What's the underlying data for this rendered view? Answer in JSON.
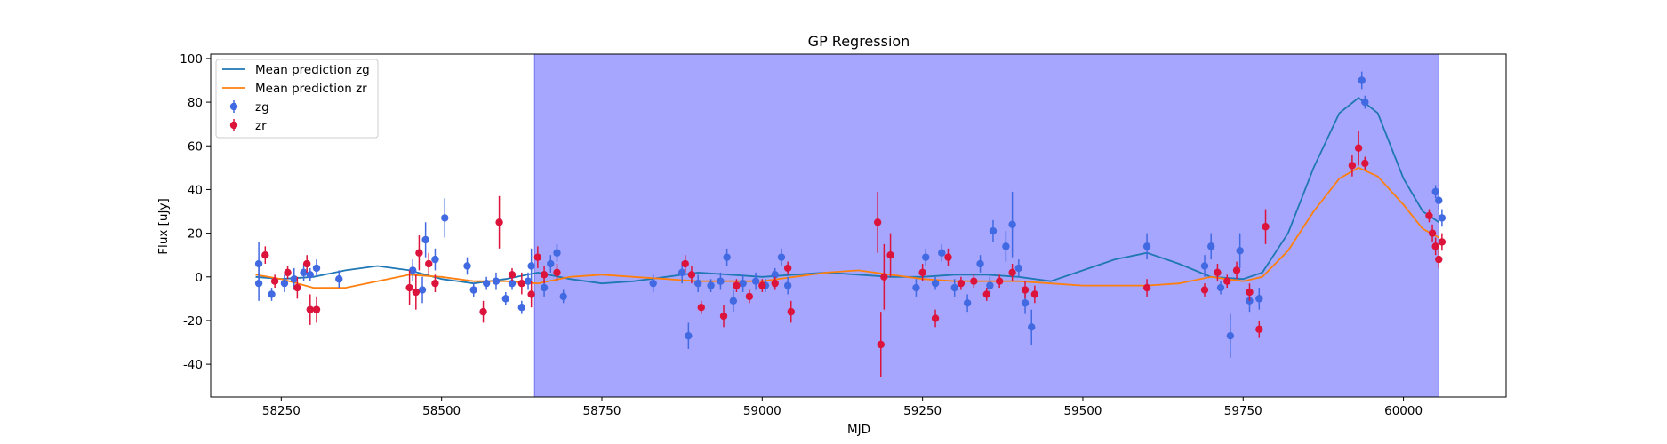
{
  "chart_data": {
    "type": "scatter",
    "title": "GP Regression",
    "xlabel": "MJD",
    "ylabel": "Flux [uJy]",
    "xlim": [
      58140,
      60160
    ],
    "ylim": [
      -55,
      102
    ],
    "xticks": [
      58250,
      58500,
      58750,
      59000,
      59250,
      59500,
      59750,
      60000
    ],
    "yticks": [
      -40,
      -20,
      0,
      20,
      40,
      60,
      80,
      100
    ],
    "grid": false,
    "legend_position": "top-left",
    "shaded_region": {
      "x0": 58645,
      "x1": 60055,
      "color": "#a6a6ff"
    },
    "lines": [
      {
        "name": "Mean prediction zg",
        "color": "#1f77b4",
        "x": [
          58210,
          58250,
          58300,
          58350,
          58400,
          58450,
          58500,
          58550,
          58600,
          58650,
          58700,
          58750,
          58800,
          58850,
          58900,
          58950,
          59000,
          59050,
          59100,
          59150,
          59200,
          59250,
          59300,
          59350,
          59400,
          59450,
          59500,
          59550,
          59600,
          59650,
          59700,
          59750,
          59780,
          59820,
          59860,
          59900,
          59930,
          59960,
          60000,
          60030,
          60055
        ],
        "y": [
          0,
          -1,
          0,
          3,
          5,
          3,
          -1,
          -3,
          -1,
          2,
          -1,
          -3,
          -2,
          0,
          2,
          1,
          0,
          1,
          2,
          1,
          0,
          0,
          1,
          1,
          0,
          -2,
          3,
          8,
          11,
          6,
          0,
          -1,
          2,
          20,
          50,
          75,
          82,
          75,
          45,
          30,
          25
        ]
      },
      {
        "name": "Mean prediction zr",
        "color": "#ff7f0e",
        "x": [
          58210,
          58250,
          58300,
          58350,
          58400,
          58450,
          58500,
          58550,
          58600,
          58650,
          58700,
          58750,
          58800,
          58850,
          58900,
          58950,
          59000,
          59050,
          59100,
          59150,
          59200,
          59250,
          59300,
          59350,
          59400,
          59450,
          59500,
          59550,
          59600,
          59650,
          59700,
          59750,
          59780,
          59820,
          59860,
          59900,
          59930,
          59960,
          60000,
          60030,
          60055
        ],
        "y": [
          1,
          -1,
          -5,
          -5,
          -2,
          1,
          0,
          -2,
          -2,
          -3,
          0,
          1,
          0,
          -1,
          -2,
          -2,
          -2,
          0,
          2,
          3,
          1,
          -1,
          -2,
          -2,
          -2,
          -3,
          -4,
          -4,
          -4,
          -3,
          0,
          -2,
          0,
          12,
          30,
          45,
          50,
          46,
          33,
          22,
          18
        ]
      }
    ],
    "series": [
      {
        "name": "zg",
        "color": "#4169e1",
        "points": [
          [
            58215,
            6,
            10
          ],
          [
            58215,
            -3,
            8
          ],
          [
            58235,
            -8,
            3
          ],
          [
            58255,
            -3,
            4
          ],
          [
            58270,
            -1,
            5
          ],
          [
            58285,
            2,
            4
          ],
          [
            58295,
            1,
            3
          ],
          [
            58305,
            4,
            4
          ],
          [
            58340,
            -1,
            4
          ],
          [
            58455,
            3,
            5
          ],
          [
            58470,
            -6,
            6
          ],
          [
            58475,
            17,
            8
          ],
          [
            58490,
            8,
            5
          ],
          [
            58505,
            27,
            9
          ],
          [
            58540,
            5,
            4
          ],
          [
            58550,
            -6,
            3
          ],
          [
            58570,
            -3,
            3
          ],
          [
            58585,
            -2,
            4
          ],
          [
            58600,
            -10,
            3
          ],
          [
            58610,
            -3,
            3
          ],
          [
            58625,
            -14,
            3
          ],
          [
            58635,
            -2,
            4
          ],
          [
            58640,
            5,
            8
          ],
          [
            58660,
            -5,
            4
          ],
          [
            58670,
            6,
            4
          ],
          [
            58680,
            11,
            4
          ],
          [
            58690,
            -9,
            3
          ],
          [
            58830,
            -3,
            4
          ],
          [
            58875,
            2,
            5
          ],
          [
            58885,
            -27,
            6
          ],
          [
            58900,
            -3,
            4
          ],
          [
            58920,
            -4,
            3
          ],
          [
            58935,
            -2,
            4
          ],
          [
            58945,
            9,
            4
          ],
          [
            58955,
            -11,
            5
          ],
          [
            58970,
            -3,
            4
          ],
          [
            58990,
            -2,
            4
          ],
          [
            59005,
            -4,
            3
          ],
          [
            59020,
            1,
            3
          ],
          [
            59030,
            9,
            4
          ],
          [
            59040,
            -4,
            4
          ],
          [
            59240,
            -5,
            4
          ],
          [
            59255,
            9,
            4
          ],
          [
            59270,
            -3,
            3
          ],
          [
            59280,
            11,
            4
          ],
          [
            59300,
            -5,
            4
          ],
          [
            59320,
            -12,
            4
          ],
          [
            59340,
            6,
            4
          ],
          [
            59355,
            -4,
            4
          ],
          [
            59360,
            21,
            5
          ],
          [
            59380,
            14,
            7
          ],
          [
            59390,
            24,
            15
          ],
          [
            59400,
            4,
            4
          ],
          [
            59410,
            -12,
            5
          ],
          [
            59420,
            -23,
            8
          ],
          [
            59600,
            14,
            6
          ],
          [
            59690,
            5,
            5
          ],
          [
            59700,
            14,
            6
          ],
          [
            59715,
            -5,
            3
          ],
          [
            59730,
            -27,
            10
          ],
          [
            59745,
            12,
            8
          ],
          [
            59760,
            -11,
            5
          ],
          [
            59775,
            -10,
            5
          ],
          [
            59935,
            90,
            4
          ],
          [
            59940,
            80,
            3
          ],
          [
            60050,
            39,
            3
          ],
          [
            60055,
            35,
            4
          ],
          [
            60060,
            27,
            4
          ]
        ]
      },
      {
        "name": "zr",
        "color": "#dc143c",
        "points": [
          [
            58225,
            10,
            4
          ],
          [
            58240,
            -2,
            3
          ],
          [
            58260,
            2,
            3
          ],
          [
            58275,
            -5,
            5
          ],
          [
            58290,
            6,
            4
          ],
          [
            58295,
            -15,
            7
          ],
          [
            58305,
            -15,
            6
          ],
          [
            58450,
            -5,
            8
          ],
          [
            58460,
            -7,
            8
          ],
          [
            58465,
            11,
            8
          ],
          [
            58480,
            6,
            5
          ],
          [
            58490,
            -3,
            4
          ],
          [
            58565,
            -16,
            5
          ],
          [
            58590,
            25,
            12
          ],
          [
            58610,
            1,
            3
          ],
          [
            58625,
            -3,
            5
          ],
          [
            58640,
            -8,
            6
          ],
          [
            58650,
            9,
            5
          ],
          [
            58660,
            1,
            4
          ],
          [
            58680,
            2,
            4
          ],
          [
            58880,
            6,
            4
          ],
          [
            58890,
            1,
            4
          ],
          [
            58905,
            -14,
            3
          ],
          [
            58940,
            -18,
            5
          ],
          [
            58960,
            -4,
            3
          ],
          [
            58980,
            -9,
            3
          ],
          [
            59000,
            -4,
            3
          ],
          [
            59020,
            -3,
            3
          ],
          [
            59040,
            4,
            3
          ],
          [
            59045,
            -16,
            5
          ],
          [
            59180,
            25,
            14
          ],
          [
            59185,
            -31,
            15
          ],
          [
            59190,
            0,
            15
          ],
          [
            59200,
            10,
            10
          ],
          [
            59250,
            2,
            4
          ],
          [
            59270,
            -19,
            4
          ],
          [
            59290,
            9,
            4
          ],
          [
            59310,
            -3,
            3
          ],
          [
            59330,
            -2,
            3
          ],
          [
            59350,
            -8,
            3
          ],
          [
            59370,
            -2,
            3
          ],
          [
            59390,
            2,
            4
          ],
          [
            59410,
            -6,
            4
          ],
          [
            59425,
            -8,
            4
          ],
          [
            59600,
            -5,
            4
          ],
          [
            59690,
            -6,
            3
          ],
          [
            59710,
            2,
            4
          ],
          [
            59725,
            -2,
            3
          ],
          [
            59740,
            3,
            4
          ],
          [
            59760,
            -7,
            4
          ],
          [
            59775,
            -24,
            4
          ],
          [
            59785,
            23,
            8
          ],
          [
            59920,
            51,
            5
          ],
          [
            59930,
            59,
            8
          ],
          [
            59940,
            52,
            3
          ],
          [
            60040,
            28,
            3
          ],
          [
            60045,
            20,
            4
          ],
          [
            60050,
            14,
            4
          ],
          [
            60055,
            8,
            4
          ],
          [
            60060,
            16,
            4
          ]
        ]
      }
    ]
  }
}
